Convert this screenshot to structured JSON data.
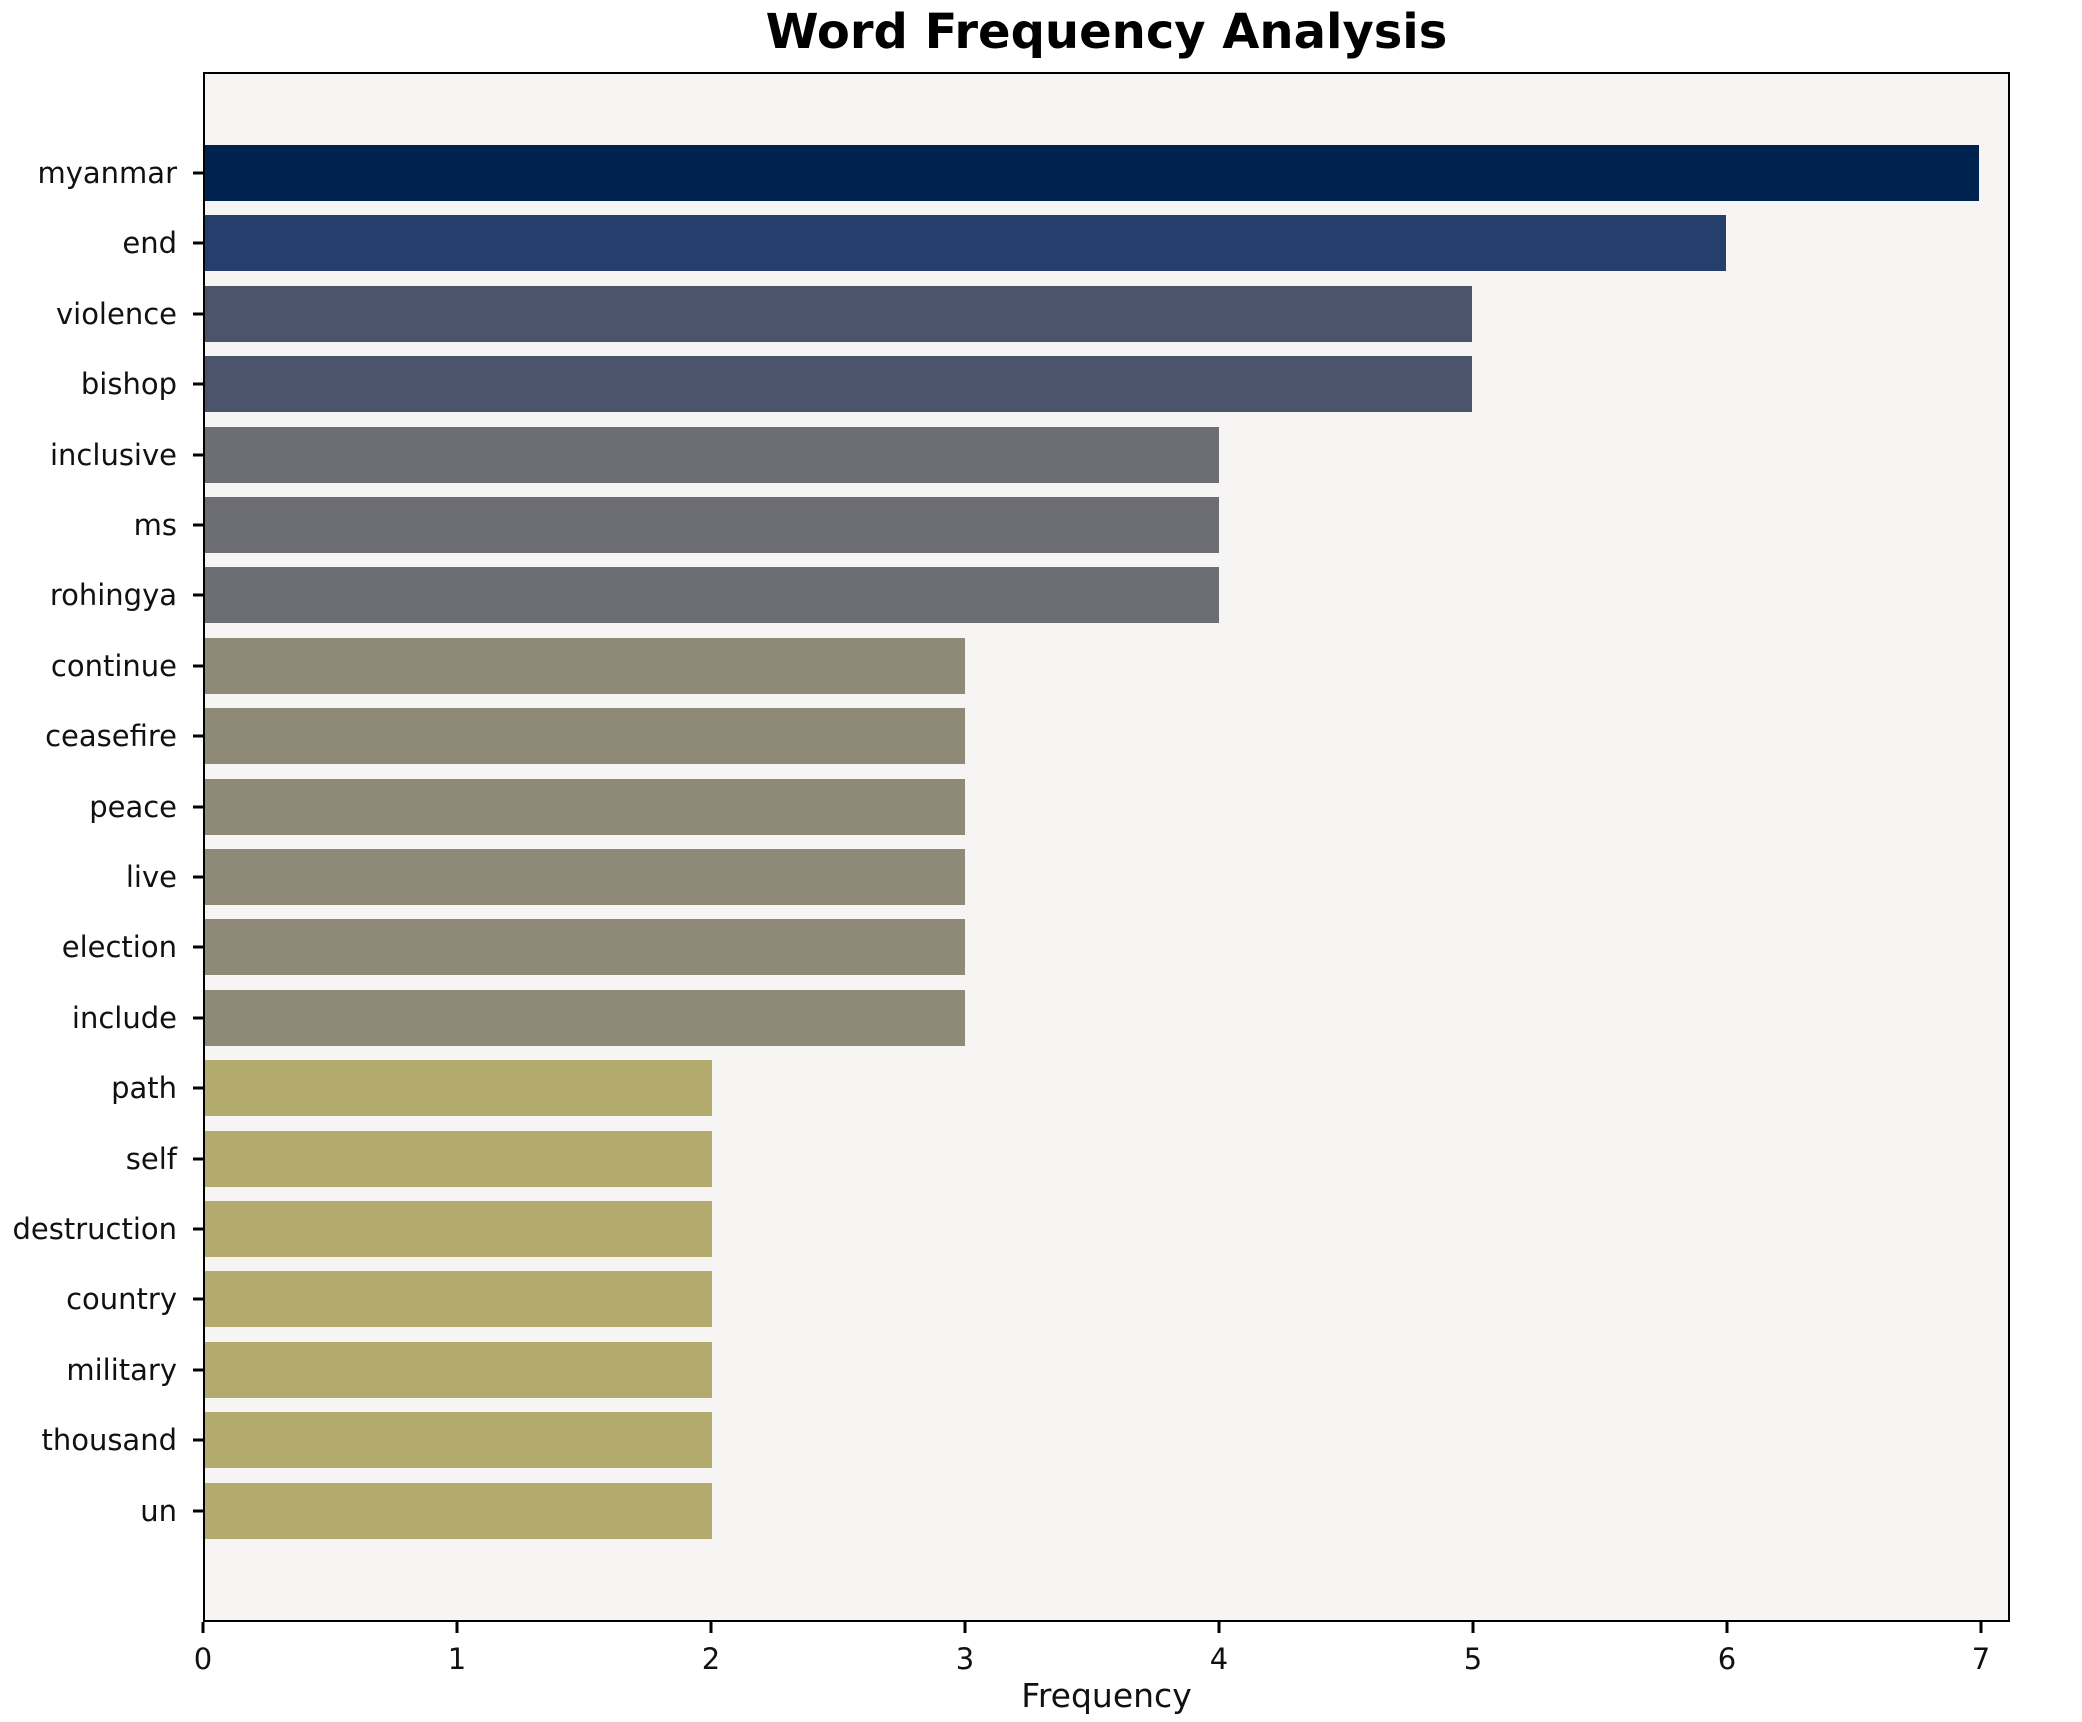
{
  "figure": {
    "title": "Word Frequency Analysis",
    "background_color": "#ffffff",
    "plot_background_color": "#f6f5f3",
    "spine_color": "#000000"
  },
  "chart_data": {
    "type": "bar",
    "orientation": "horizontal",
    "title": "Word Frequency Analysis",
    "xlabel": "Frequency",
    "ylabel": "",
    "categories": [
      "myanmar",
      "end",
      "violence",
      "bishop",
      "inclusive",
      "ms",
      "rohingya",
      "continue",
      "ceasefire",
      "peace",
      "live",
      "election",
      "include",
      "path",
      "self",
      "destruction",
      "country",
      "military",
      "thousand",
      "un"
    ],
    "values": [
      7,
      6,
      5,
      5,
      4,
      4,
      4,
      3,
      3,
      3,
      3,
      3,
      3,
      2,
      2,
      2,
      2,
      2,
      2,
      2
    ],
    "xlim": [
      0,
      7.11
    ],
    "xticks": [
      "0",
      "1",
      "2",
      "3",
      "4",
      "5",
      "6",
      "7"
    ],
    "grid": false,
    "legend": null,
    "bar_colors_by_value": {
      "7": "#00224e",
      "6": "#253e6c",
      "5": "#4c546c",
      "4": "#6c6e73",
      "3": "#8f8a78",
      "2": "#b3ab6e"
    }
  }
}
